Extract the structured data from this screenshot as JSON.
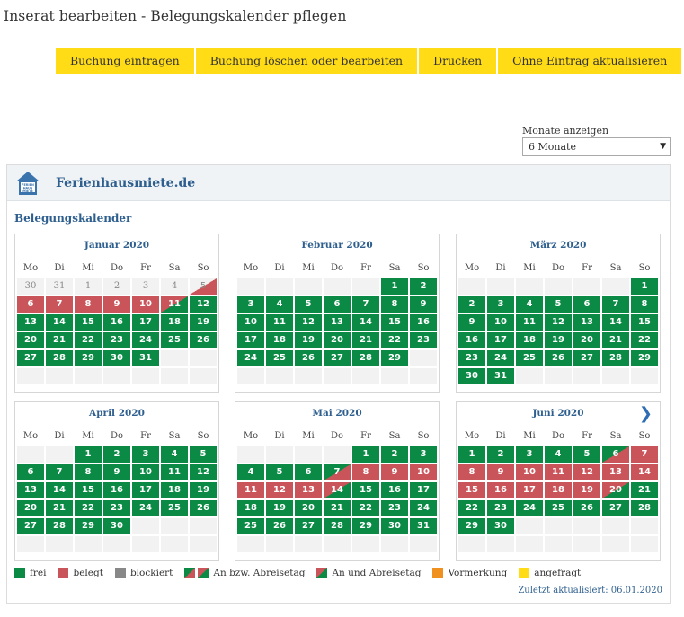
{
  "page": {
    "title": "Inserat bearbeiten - Belegungskalender pflegen"
  },
  "toolbar": {
    "buttons": [
      "Buchung eintragen",
      "Buchung löschen oder bearbeiten",
      "Drucken",
      "Ohne Eintrag aktualisieren"
    ]
  },
  "months_control": {
    "label": "Monate anzeigen",
    "value": "6 Monate"
  },
  "widget": {
    "brand": "Ferienhausmiete.de",
    "logo_text": "FERIENHAUSMIETE",
    "section_title": "Belegungskalender",
    "updated": "Zuletzt aktualisiert: 06.01.2020"
  },
  "weekdays": [
    "Mo",
    "Di",
    "Mi",
    "Do",
    "Fr",
    "Sa",
    "So"
  ],
  "colors": {
    "frei": "#0a8a44",
    "belegt": "#c9545a",
    "blockiert": "#888888",
    "vormerkung": "#f0901e",
    "angefragt": "#ffdc16",
    "link": "#2e5f8e"
  },
  "months": [
    {
      "title": "Januar 2020",
      "cells": [
        [
          "p",
          "30"
        ],
        [
          "p",
          "31"
        ],
        [
          "p",
          "1"
        ],
        [
          "p",
          "2"
        ],
        [
          "p",
          "3"
        ],
        [
          "p",
          "4"
        ],
        [
          "pb",
          "5"
        ],
        [
          "b",
          "6"
        ],
        [
          "b",
          "7"
        ],
        [
          "b",
          "8"
        ],
        [
          "b",
          "9"
        ],
        [
          "b",
          "10"
        ],
        [
          "bf",
          "11"
        ],
        [
          "f",
          "12"
        ],
        [
          "f",
          "13"
        ],
        [
          "f",
          "14"
        ],
        [
          "f",
          "15"
        ],
        [
          "f",
          "16"
        ],
        [
          "f",
          "17"
        ],
        [
          "f",
          "18"
        ],
        [
          "f",
          "19"
        ],
        [
          "f",
          "20"
        ],
        [
          "f",
          "21"
        ],
        [
          "f",
          "22"
        ],
        [
          "f",
          "23"
        ],
        [
          "f",
          "24"
        ],
        [
          "f",
          "25"
        ],
        [
          "f",
          "26"
        ],
        [
          "f",
          "27"
        ],
        [
          "f",
          "28"
        ],
        [
          "f",
          "29"
        ],
        [
          "f",
          "30"
        ],
        [
          "f",
          "31"
        ],
        [
          "e",
          ""
        ],
        [
          "e",
          ""
        ],
        [
          "e",
          ""
        ],
        [
          "e",
          ""
        ],
        [
          "e",
          ""
        ],
        [
          "e",
          ""
        ],
        [
          "e",
          ""
        ],
        [
          "e",
          ""
        ],
        [
          "e",
          ""
        ]
      ]
    },
    {
      "title": "Februar 2020",
      "cells": [
        [
          "e",
          ""
        ],
        [
          "e",
          ""
        ],
        [
          "e",
          ""
        ],
        [
          "e",
          ""
        ],
        [
          "e",
          ""
        ],
        [
          "f",
          "1"
        ],
        [
          "f",
          "2"
        ],
        [
          "f",
          "3"
        ],
        [
          "f",
          "4"
        ],
        [
          "f",
          "5"
        ],
        [
          "f",
          "6"
        ],
        [
          "f",
          "7"
        ],
        [
          "f",
          "8"
        ],
        [
          "f",
          "9"
        ],
        [
          "f",
          "10"
        ],
        [
          "f",
          "11"
        ],
        [
          "f",
          "12"
        ],
        [
          "f",
          "13"
        ],
        [
          "f",
          "14"
        ],
        [
          "f",
          "15"
        ],
        [
          "f",
          "16"
        ],
        [
          "f",
          "17"
        ],
        [
          "f",
          "18"
        ],
        [
          "f",
          "19"
        ],
        [
          "f",
          "20"
        ],
        [
          "f",
          "21"
        ],
        [
          "f",
          "22"
        ],
        [
          "f",
          "23"
        ],
        [
          "f",
          "24"
        ],
        [
          "f",
          "25"
        ],
        [
          "f",
          "26"
        ],
        [
          "f",
          "27"
        ],
        [
          "f",
          "28"
        ],
        [
          "f",
          "29"
        ],
        [
          "e",
          ""
        ],
        [
          "e",
          ""
        ],
        [
          "e",
          ""
        ],
        [
          "e",
          ""
        ],
        [
          "e",
          ""
        ],
        [
          "e",
          ""
        ],
        [
          "e",
          ""
        ],
        [
          "e",
          ""
        ]
      ]
    },
    {
      "title": "März 2020",
      "cells": [
        [
          "e",
          ""
        ],
        [
          "e",
          ""
        ],
        [
          "e",
          ""
        ],
        [
          "e",
          ""
        ],
        [
          "e",
          ""
        ],
        [
          "e",
          ""
        ],
        [
          "f",
          "1"
        ],
        [
          "f",
          "2"
        ],
        [
          "f",
          "3"
        ],
        [
          "f",
          "4"
        ],
        [
          "f",
          "5"
        ],
        [
          "f",
          "6"
        ],
        [
          "f",
          "7"
        ],
        [
          "f",
          "8"
        ],
        [
          "f",
          "9"
        ],
        [
          "f",
          "10"
        ],
        [
          "f",
          "11"
        ],
        [
          "f",
          "12"
        ],
        [
          "f",
          "13"
        ],
        [
          "f",
          "14"
        ],
        [
          "f",
          "15"
        ],
        [
          "f",
          "16"
        ],
        [
          "f",
          "17"
        ],
        [
          "f",
          "18"
        ],
        [
          "f",
          "19"
        ],
        [
          "f",
          "20"
        ],
        [
          "f",
          "21"
        ],
        [
          "f",
          "22"
        ],
        [
          "f",
          "23"
        ],
        [
          "f",
          "24"
        ],
        [
          "f",
          "25"
        ],
        [
          "f",
          "26"
        ],
        [
          "f",
          "27"
        ],
        [
          "f",
          "28"
        ],
        [
          "f",
          "29"
        ],
        [
          "f",
          "30"
        ],
        [
          "f",
          "31"
        ],
        [
          "e",
          ""
        ],
        [
          "e",
          ""
        ],
        [
          "e",
          ""
        ],
        [
          "e",
          ""
        ],
        [
          "e",
          ""
        ]
      ]
    },
    {
      "title": "April 2020",
      "cells": [
        [
          "e",
          ""
        ],
        [
          "e",
          ""
        ],
        [
          "f",
          "1"
        ],
        [
          "f",
          "2"
        ],
        [
          "f",
          "3"
        ],
        [
          "f",
          "4"
        ],
        [
          "f",
          "5"
        ],
        [
          "f",
          "6"
        ],
        [
          "f",
          "7"
        ],
        [
          "f",
          "8"
        ],
        [
          "f",
          "9"
        ],
        [
          "f",
          "10"
        ],
        [
          "f",
          "11"
        ],
        [
          "f",
          "12"
        ],
        [
          "f",
          "13"
        ],
        [
          "f",
          "14"
        ],
        [
          "f",
          "15"
        ],
        [
          "f",
          "16"
        ],
        [
          "f",
          "17"
        ],
        [
          "f",
          "18"
        ],
        [
          "f",
          "19"
        ],
        [
          "f",
          "20"
        ],
        [
          "f",
          "21"
        ],
        [
          "f",
          "22"
        ],
        [
          "f",
          "23"
        ],
        [
          "f",
          "24"
        ],
        [
          "f",
          "25"
        ],
        [
          "f",
          "26"
        ],
        [
          "f",
          "27"
        ],
        [
          "f",
          "28"
        ],
        [
          "f",
          "29"
        ],
        [
          "f",
          "30"
        ],
        [
          "e",
          ""
        ],
        [
          "e",
          ""
        ],
        [
          "e",
          ""
        ],
        [
          "e",
          ""
        ],
        [
          "e",
          ""
        ],
        [
          "e",
          ""
        ],
        [
          "e",
          ""
        ],
        [
          "e",
          ""
        ],
        [
          "e",
          ""
        ],
        [
          "e",
          ""
        ]
      ]
    },
    {
      "title": "Mai 2020",
      "cells": [
        [
          "e",
          ""
        ],
        [
          "e",
          ""
        ],
        [
          "e",
          ""
        ],
        [
          "e",
          ""
        ],
        [
          "f",
          "1"
        ],
        [
          "f",
          "2"
        ],
        [
          "f",
          "3"
        ],
        [
          "f",
          "4"
        ],
        [
          "f",
          "5"
        ],
        [
          "f",
          "6"
        ],
        [
          "fb",
          "7"
        ],
        [
          "b",
          "8"
        ],
        [
          "b",
          "9"
        ],
        [
          "b",
          "10"
        ],
        [
          "b",
          "11"
        ],
        [
          "b",
          "12"
        ],
        [
          "b",
          "13"
        ],
        [
          "bf",
          "14"
        ],
        [
          "f",
          "15"
        ],
        [
          "f",
          "16"
        ],
        [
          "f",
          "17"
        ],
        [
          "f",
          "18"
        ],
        [
          "f",
          "19"
        ],
        [
          "f",
          "20"
        ],
        [
          "f",
          "21"
        ],
        [
          "f",
          "22"
        ],
        [
          "f",
          "23"
        ],
        [
          "f",
          "24"
        ],
        [
          "f",
          "25"
        ],
        [
          "f",
          "26"
        ],
        [
          "f",
          "27"
        ],
        [
          "f",
          "28"
        ],
        [
          "f",
          "29"
        ],
        [
          "f",
          "30"
        ],
        [
          "f",
          "31"
        ],
        [
          "e",
          ""
        ],
        [
          "e",
          ""
        ],
        [
          "e",
          ""
        ],
        [
          "e",
          ""
        ],
        [
          "e",
          ""
        ],
        [
          "e",
          ""
        ],
        [
          "e",
          ""
        ]
      ]
    },
    {
      "title": "Juni 2020",
      "cells": [
        [
          "f",
          "1"
        ],
        [
          "f",
          "2"
        ],
        [
          "f",
          "3"
        ],
        [
          "f",
          "4"
        ],
        [
          "f",
          "5"
        ],
        [
          "fb",
          "6"
        ],
        [
          "b",
          "7"
        ],
        [
          "b",
          "8"
        ],
        [
          "b",
          "9"
        ],
        [
          "b",
          "10"
        ],
        [
          "b",
          "11"
        ],
        [
          "b",
          "12"
        ],
        [
          "b",
          "13"
        ],
        [
          "b",
          "14"
        ],
        [
          "b",
          "15"
        ],
        [
          "b",
          "16"
        ],
        [
          "b",
          "17"
        ],
        [
          "b",
          "18"
        ],
        [
          "b",
          "19"
        ],
        [
          "bf",
          "20"
        ],
        [
          "f",
          "21"
        ],
        [
          "f",
          "22"
        ],
        [
          "f",
          "23"
        ],
        [
          "f",
          "24"
        ],
        [
          "f",
          "25"
        ],
        [
          "f",
          "26"
        ],
        [
          "f",
          "27"
        ],
        [
          "f",
          "28"
        ],
        [
          "f",
          "29"
        ],
        [
          "f",
          "30"
        ],
        [
          "e",
          ""
        ],
        [
          "e",
          ""
        ],
        [
          "e",
          ""
        ],
        [
          "e",
          ""
        ],
        [
          "e",
          ""
        ],
        [
          "e",
          ""
        ],
        [
          "e",
          ""
        ],
        [
          "e",
          ""
        ],
        [
          "e",
          ""
        ],
        [
          "e",
          ""
        ],
        [
          "e",
          ""
        ],
        [
          "e",
          ""
        ]
      ]
    }
  ],
  "next_arrow": "❯",
  "legend": [
    "frei",
    "belegt",
    "blockiert",
    "An bzw. Abreisetag",
    "An und Abreisetag",
    "Vormerkung",
    "angefragt"
  ]
}
